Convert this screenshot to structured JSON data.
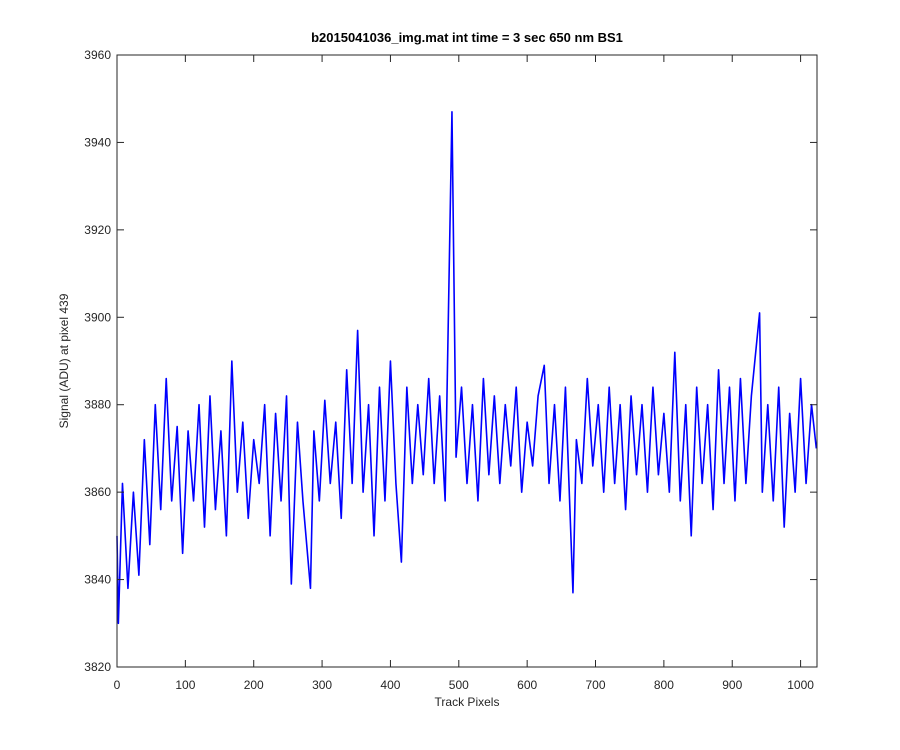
{
  "chart_data": {
    "type": "line",
    "title": "b2015041036_img.mat int time = 3 sec  650 nm BS1",
    "xlabel": "Track Pixels",
    "ylabel": "Signal (ADU) at pixel 439",
    "color": "#0000ff",
    "grid": false,
    "xlim": [
      0,
      1024
    ],
    "ylim": [
      3820,
      3960
    ],
    "xticks": [
      0,
      100,
      200,
      300,
      400,
      500,
      600,
      700,
      800,
      900,
      1000
    ],
    "yticks": [
      3820,
      3840,
      3860,
      3880,
      3900,
      3920,
      3940,
      3960
    ],
    "x": [
      0,
      2,
      8,
      16,
      24,
      32,
      40,
      48,
      56,
      64,
      72,
      80,
      88,
      96,
      104,
      112,
      120,
      128,
      136,
      144,
      152,
      160,
      168,
      176,
      184,
      192,
      200,
      208,
      216,
      224,
      232,
      240,
      248,
      255,
      264,
      272,
      283,
      288,
      296,
      304,
      312,
      320,
      328,
      336,
      344,
      352,
      360,
      368,
      376,
      384,
      392,
      400,
      408,
      416,
      424,
      432,
      440,
      448,
      456,
      464,
      472,
      480,
      490,
      496,
      504,
      512,
      520,
      528,
      536,
      544,
      552,
      560,
      568,
      576,
      584,
      592,
      600,
      608,
      616,
      625,
      632,
      640,
      648,
      656,
      667,
      672,
      680,
      688,
      696,
      704,
      712,
      720,
      728,
      736,
      744,
      752,
      760,
      768,
      776,
      784,
      792,
      800,
      808,
      816,
      824,
      832,
      840,
      848,
      856,
      864,
      872,
      880,
      888,
      896,
      904,
      912,
      920,
      928,
      940,
      944,
      952,
      960,
      968,
      976,
      984,
      992,
      1000,
      1008,
      1016,
      1023
    ],
    "values": [
      3850,
      3830,
      3862,
      3838,
      3860,
      3841,
      3872,
      3848,
      3880,
      3856,
      3886,
      3858,
      3875,
      3846,
      3874,
      3858,
      3880,
      3852,
      3882,
      3856,
      3874,
      3850,
      3890,
      3860,
      3876,
      3854,
      3872,
      3862,
      3880,
      3850,
      3878,
      3858,
      3882,
      3839,
      3876,
      3858,
      3838,
      3874,
      3858,
      3881,
      3862,
      3876,
      3854,
      3888,
      3862,
      3897,
      3860,
      3880,
      3850,
      3884,
      3858,
      3890,
      3862,
      3844,
      3884,
      3862,
      3880,
      3864,
      3886,
      3862,
      3882,
      3858,
      3947,
      3868,
      3884,
      3862,
      3880,
      3858,
      3886,
      3864,
      3882,
      3862,
      3880,
      3866,
      3884,
      3860,
      3876,
      3866,
      3882,
      3889,
      3862,
      3880,
      3858,
      3884,
      3837,
      3872,
      3862,
      3886,
      3866,
      3880,
      3860,
      3884,
      3862,
      3880,
      3856,
      3882,
      3864,
      3880,
      3860,
      3884,
      3864,
      3878,
      3860,
      3892,
      3858,
      3880,
      3850,
      3884,
      3862,
      3880,
      3856,
      3888,
      3862,
      3884,
      3858,
      3886,
      3862,
      3882,
      3901,
      3860,
      3880,
      3858,
      3884,
      3852,
      3878,
      3860,
      3886,
      3862,
      3880,
      3870
    ]
  }
}
